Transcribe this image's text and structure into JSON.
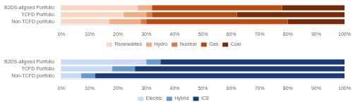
{
  "chart_data": [
    {
      "type": "bar",
      "orientation": "horizontal",
      "stacked": true,
      "grid": false,
      "legend": "bottom",
      "categories": [
        "B2DS-aligned Portfolio",
        "TCFD Portfolio",
        "Non-TCFD portfolio"
      ],
      "series": [
        {
          "name": "Renewables",
          "color": "#f9d5c4",
          "values": [
            27,
            22,
            17
          ]
        },
        {
          "name": "Hydro",
          "color": "#f0aa84",
          "values": [
            5,
            8,
            11
          ]
        },
        {
          "name": "Nuclear",
          "color": "#e07a40",
          "values": [
            0,
            2,
            2
          ]
        },
        {
          "name": "Gas",
          "color": "#b84a10",
          "values": [
            46,
            30,
            50
          ]
        },
        {
          "name": "Coal",
          "color": "#7a2a08",
          "values": [
            22,
            38,
            20
          ]
        }
      ],
      "xlim": [
        0,
        100
      ],
      "xticks": [
        {
          "value": 0,
          "label": "0%"
        },
        {
          "value": 10,
          "label": "10%"
        },
        {
          "value": 20,
          "label": "20%"
        },
        {
          "value": 30,
          "label": "30%"
        },
        {
          "value": 40,
          "label": "40%"
        },
        {
          "value": 50,
          "label": "50%"
        },
        {
          "value": 60,
          "label": "60%"
        },
        {
          "value": 70,
          "label": "70%"
        },
        {
          "value": 80,
          "label": "80%"
        },
        {
          "value": 90,
          "label": "90%"
        },
        {
          "value": 100,
          "label": "100%"
        }
      ]
    },
    {
      "type": "bar",
      "orientation": "horizontal",
      "stacked": true,
      "grid": false,
      "legend": "bottom",
      "categories": [
        "B2DS-aligned Portfolio",
        "TCFD Portfolio",
        "Non-TCFD portfolio"
      ],
      "series": [
        {
          "name": "Electric",
          "color": "#c8daf5",
          "values": [
            30,
            18,
            7
          ]
        },
        {
          "name": "Hybrid",
          "color": "#6699cc",
          "values": [
            5,
            8,
            5
          ]
        },
        {
          "name": "ICE",
          "color": "#1a3a7a",
          "values": [
            65,
            74,
            88
          ]
        }
      ],
      "xlim": [
        0,
        100
      ],
      "xticks": [
        {
          "value": 0,
          "label": "0%"
        },
        {
          "value": 10,
          "label": "10%"
        },
        {
          "value": 20,
          "label": "20%"
        },
        {
          "value": 30,
          "label": "30%"
        },
        {
          "value": 40,
          "label": "40%"
        },
        {
          "value": 50,
          "label": "50%"
        },
        {
          "value": 60,
          "label": "60%"
        },
        {
          "value": 70,
          "label": "70%"
        },
        {
          "value": 80,
          "label": "80%"
        },
        {
          "value": 90,
          "label": "90%"
        },
        {
          "value": 100,
          "label": "100%"
        }
      ]
    }
  ]
}
